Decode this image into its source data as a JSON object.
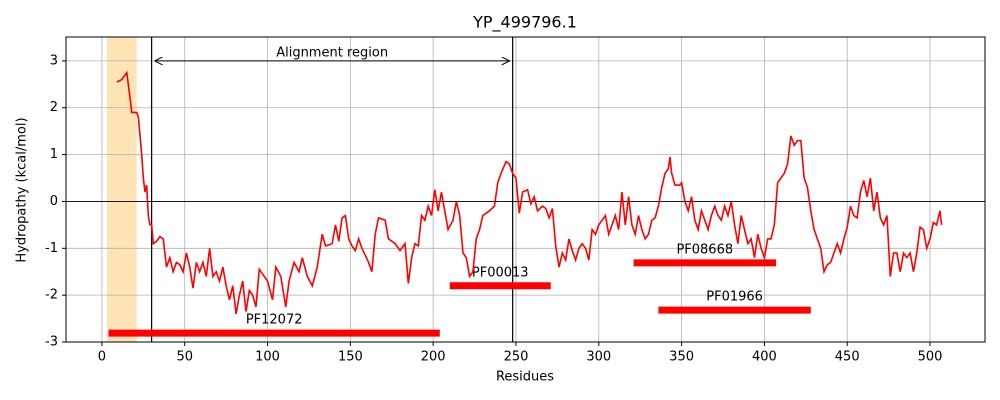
{
  "chart_data": {
    "type": "line",
    "title": "YP_499796.1",
    "xlabel": "Residues",
    "ylabel": "Hydropathy (kcal/mol)",
    "xlim": [
      -21.7,
      533.2
    ],
    "ylim": [
      -3,
      3.51
    ],
    "xticks": [
      0,
      50,
      100,
      150,
      200,
      250,
      300,
      350,
      400,
      450,
      500
    ],
    "yticks": [
      -3,
      -2,
      -1,
      0,
      1,
      2,
      3
    ],
    "grid": true,
    "color": "#ff0000",
    "hline": 0,
    "span": {
      "start": 3,
      "end": 21,
      "color": "#ffe4b5"
    },
    "alignment": {
      "label": "Alignment region",
      "start": 30,
      "end": 248,
      "y": 3
    },
    "domains": [
      {
        "name": "PF12072",
        "start": 4,
        "end": 204,
        "y": -2.81
      },
      {
        "name": "PF00013",
        "start": 210,
        "end": 271,
        "y": -1.8
      },
      {
        "name": "PF08668",
        "start": 321,
        "end": 407,
        "y": -1.31
      },
      {
        "name": "PF01966",
        "start": 336,
        "end": 428,
        "y": -2.32
      }
    ],
    "x": [
      9,
      12,
      14,
      15,
      17,
      18,
      21,
      22,
      24,
      25,
      26,
      27,
      28,
      29,
      30,
      31,
      33,
      35,
      37,
      39,
      41,
      43,
      45,
      47,
      49,
      51,
      53,
      55,
      57,
      59,
      61,
      63,
      65,
      67,
      69,
      71,
      73,
      75,
      77,
      79,
      81,
      83,
      85,
      87,
      89,
      91,
      93,
      95,
      98,
      100,
      103,
      105,
      108,
      111,
      113,
      116,
      119,
      121,
      124,
      127,
      130,
      133,
      135,
      139,
      141,
      143,
      145,
      147,
      149,
      151,
      153,
      155,
      157,
      159,
      161,
      163,
      165,
      167,
      171,
      173,
      177,
      180,
      183,
      185,
      187,
      189,
      191,
      193,
      195,
      197,
      199,
      201,
      203,
      205,
      207,
      209,
      212,
      214,
      216,
      218,
      220,
      222,
      224,
      226,
      228,
      230,
      232,
      234,
      237,
      239,
      241,
      244,
      246,
      248,
      250,
      252,
      254,
      257,
      259,
      261,
      263,
      266,
      268,
      270,
      272,
      274,
      276,
      278,
      280,
      282,
      284,
      286,
      288,
      290,
      292,
      294,
      296,
      298,
      300,
      302,
      304,
      306,
      308,
      310,
      312,
      314,
      316,
      318,
      320,
      322,
      324,
      326,
      328,
      330,
      332,
      334,
      336,
      338,
      340,
      342,
      343,
      344,
      346,
      349,
      350,
      352,
      354,
      356,
      358,
      360,
      362,
      364,
      366,
      368,
      370,
      372,
      374,
      376,
      378,
      380,
      382,
      384,
      386,
      388,
      390,
      392,
      394,
      396,
      398,
      400,
      402,
      404,
      406,
      408,
      410,
      412,
      414,
      415,
      416,
      418,
      420,
      422,
      424,
      426,
      428,
      430,
      432,
      434,
      436,
      438,
      440,
      442,
      444,
      446,
      448,
      450,
      452,
      454,
      456,
      458,
      460,
      462,
      464,
      466,
      468,
      470,
      472,
      474,
      476,
      478,
      480,
      482,
      484,
      486,
      488,
      490,
      492,
      494,
      496,
      498,
      500,
      502,
      504,
      506,
      507
    ],
    "values": [
      2.55,
      2.6,
      2.7,
      2.75,
      2.2,
      1.9,
      1.9,
      1.8,
      1.0,
      0.5,
      0.2,
      0.35,
      -0.3,
      -0.5,
      -0.5,
      -0.9,
      -0.85,
      -0.75,
      -0.8,
      -1.4,
      -1.2,
      -1.5,
      -1.3,
      -1.35,
      -1.5,
      -1.1,
      -1.4,
      -1.85,
      -1.3,
      -1.5,
      -1.3,
      -1.6,
      -1.0,
      -1.6,
      -1.5,
      -1.7,
      -1.4,
      -1.8,
      -2.1,
      -1.8,
      -2.4,
      -2.0,
      -1.7,
      -2.35,
      -1.9,
      -2.0,
      -2.25,
      -1.45,
      -1.6,
      -1.7,
      -2.1,
      -1.4,
      -1.6,
      -2.25,
      -1.7,
      -1.3,
      -1.5,
      -1.2,
      -1.6,
      -1.8,
      -1.4,
      -0.7,
      -0.95,
      -0.9,
      -0.5,
      -0.85,
      -0.35,
      -0.3,
      -0.8,
      -0.95,
      -1.05,
      -0.8,
      -1.0,
      -1.15,
      -1.3,
      -1.5,
      -0.7,
      -0.35,
      -0.4,
      -0.8,
      -0.9,
      -1.05,
      -0.9,
      -1.75,
      -1.2,
      -0.9,
      -0.95,
      -0.3,
      -0.4,
      -0.1,
      -0.3,
      0.25,
      -0.2,
      0.2,
      -0.2,
      -0.6,
      -0.4,
      0.0,
      -0.3,
      -1.1,
      -1.2,
      -1.6,
      -1.5,
      -0.8,
      -0.6,
      -0.3,
      -0.25,
      -0.2,
      -0.1,
      0.4,
      0.6,
      0.85,
      0.8,
      0.6,
      0.5,
      -0.25,
      0.2,
      0.25,
      -0.05,
      0.1,
      -0.2,
      -0.1,
      -0.15,
      -0.35,
      -0.15,
      -0.95,
      -1.4,
      -1.1,
      -1.25,
      -0.8,
      -1.05,
      -1.25,
      -1.0,
      -0.9,
      -1.0,
      -1.25,
      -0.6,
      -0.7,
      -0.5,
      -0.4,
      -0.3,
      -0.7,
      -0.5,
      -0.3,
      -0.6,
      0.2,
      -0.5,
      0.1,
      -0.5,
      -0.7,
      -0.3,
      -0.6,
      -0.8,
      -0.7,
      -0.4,
      -0.35,
      -0.1,
      0.3,
      0.6,
      0.7,
      0.95,
      0.6,
      0.35,
      0.35,
      0.4,
      0.0,
      -0.2,
      0.1,
      -0.4,
      -0.6,
      -0.2,
      -0.4,
      -0.6,
      -0.3,
      -0.1,
      -0.3,
      -0.4,
      -0.1,
      -0.3,
      0.0,
      -0.5,
      -0.9,
      -0.3,
      -0.6,
      -0.9,
      -0.8,
      -1.2,
      -0.7,
      -1.0,
      -1.2,
      -0.8,
      -0.8,
      -0.5,
      0.4,
      0.5,
      0.6,
      0.8,
      1.1,
      1.4,
      1.2,
      1.3,
      1.3,
      0.5,
      0.3,
      -0.2,
      -0.6,
      -0.8,
      -1.0,
      -1.5,
      -1.35,
      -1.3,
      -1.1,
      -0.9,
      -1.1,
      -0.8,
      -0.55,
      -0.1,
      -0.3,
      -0.35,
      0.2,
      0.45,
      0.1,
      0.5,
      -0.2,
      0.2,
      -0.35,
      -0.5,
      -0.3,
      -1.6,
      -1.1,
      -1.1,
      -1.5,
      -1.1,
      -1.2,
      -1.1,
      -1.5,
      -1.1,
      -0.55,
      -0.6,
      -1.0,
      -0.8,
      -0.45,
      -0.5,
      -0.2,
      -0.5
    ]
  }
}
